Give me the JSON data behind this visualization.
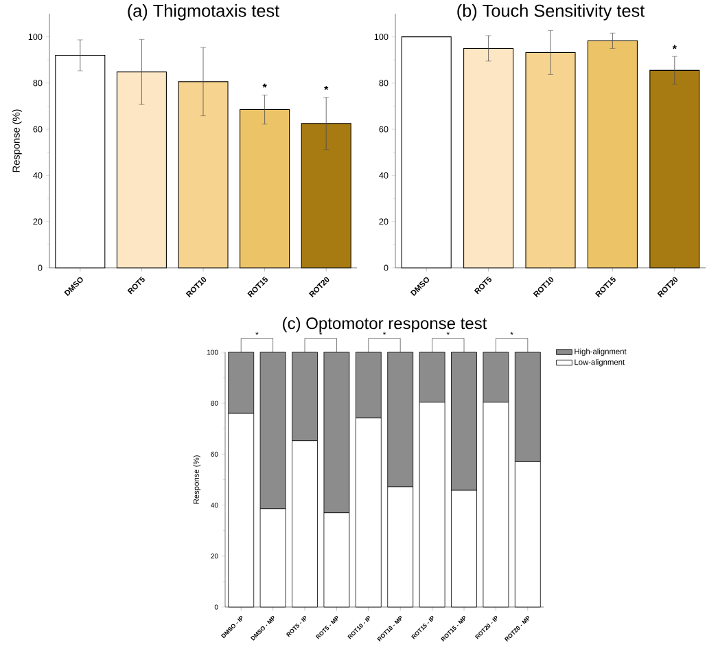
{
  "chart_data": [
    {
      "type": "bar",
      "title": "(a) Thigmotaxis test",
      "ylabel": "Response (%)",
      "categories": [
        "DMSO",
        "ROT5",
        "ROT10",
        "ROT15",
        "ROT20"
      ],
      "values": [
        92,
        84.8,
        80.6,
        68.5,
        62.5
      ],
      "errors": [
        6.7,
        14.1,
        14.8,
        6.3,
        11.3
      ],
      "colors": [
        "#ffffff",
        "#fde6c4",
        "#f6d48f",
        "#ecc366",
        "#a77a12"
      ],
      "ylim": [
        0,
        110
      ],
      "yticks": [
        0,
        20,
        40,
        60,
        80,
        100
      ],
      "annotations": [
        {
          "text": "*",
          "x": "ROT15",
          "y": 74.8
        },
        {
          "text": "*",
          "x": "ROT20",
          "y": 73.8
        }
      ]
    },
    {
      "type": "bar",
      "title": "(b) Touch Sensitivity test",
      "categories": [
        "DMSO",
        "ROT5",
        "ROT10",
        "ROT15",
        "ROT20"
      ],
      "values": [
        100,
        95,
        93.2,
        98.3,
        85.5
      ],
      "errors": [
        null,
        5.5,
        9.5,
        3.3,
        6
      ],
      "colors": [
        "#ffffff",
        "#fde6c4",
        "#f6d48f",
        "#ecc366",
        "#a77a12"
      ],
      "ylim": [
        0,
        110
      ],
      "yticks": [
        0,
        20,
        40,
        60,
        80,
        100
      ],
      "annotations": [
        {
          "text": "*",
          "x": "ROT20",
          "y": 91.5
        }
      ]
    },
    {
      "type": "bar",
      "stacked": true,
      "title": "(c) Optomotor response test",
      "ylabel": "Response (%)",
      "categories": [
        "DMSO - IP",
        "DMSO - MP",
        "ROT5 - IP",
        "ROT5 - MP",
        "ROT10 - IP",
        "ROT10 - MP",
        "ROT15 - IP",
        "ROT15 - MP",
        "ROT20 - IP",
        "ROT20 - MP"
      ],
      "ylim": [
        0,
        100
      ],
      "yticks": [
        0,
        20,
        40,
        60,
        80,
        100
      ],
      "legend": "top right",
      "series": [
        {
          "name": "Low-alignment",
          "color": "#ffffff",
          "values": [
            76,
            38.6,
            65.3,
            37,
            74.2,
            47.2,
            80.4,
            45.8,
            80.4,
            57
          ]
        },
        {
          "name": "High-alignment",
          "color": "#8c8c8c",
          "values": [
            24,
            61.4,
            34.7,
            63,
            25.8,
            52.8,
            19.6,
            54.2,
            19.6,
            43
          ]
        }
      ],
      "annotations": [
        "*",
        "*",
        "*",
        "*",
        "*"
      ]
    }
  ]
}
